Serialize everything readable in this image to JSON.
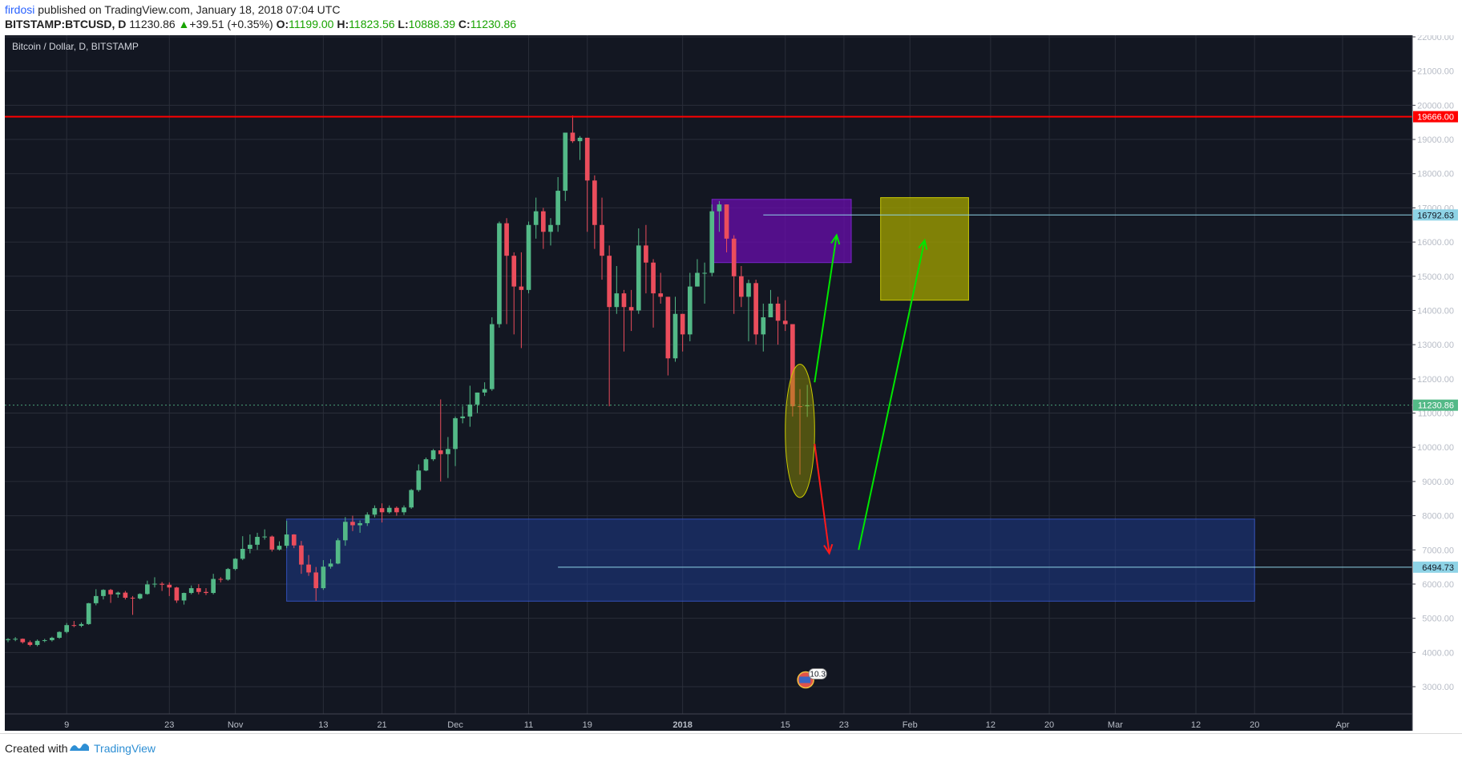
{
  "header": {
    "author": "firdosi",
    "published_text": "published on TradingView.com, January 18, 2018 07:04 UTC",
    "symbol": "BITSTAMP:BTCUSD, D",
    "last": "11230.86",
    "change": "+39.51 (+0.35%)",
    "o_label": "O:",
    "o_value": "11199.00",
    "h_label": "H:",
    "h_value": "11823.56",
    "l_label": "L:",
    "l_value": "10888.39",
    "c_label": "C:",
    "c_value": "11230.86"
  },
  "footer": {
    "created_with": "Created with",
    "brand": "TradingView"
  },
  "colors": {
    "background": "#131722",
    "grid": "#2a2e39",
    "up": "#53b987",
    "down": "#eb4d5c",
    "resistance": "#ff0000",
    "green_arrow": "#00e600",
    "red_arrow": "#ff1a1a",
    "purple_zone": "#6a0dad",
    "yellow_zone": "#9c9c00",
    "blue_zone": "#1e3a8a"
  },
  "chart_data": {
    "type": "candlestick",
    "title": "Bitcoin / Dollar, D, BITSTAMP",
    "ylim": [
      2800,
      22200
    ],
    "y_ticks": [
      3000,
      4000,
      5000,
      6000,
      7000,
      8000,
      9000,
      10000,
      11000,
      12000,
      13000,
      14000,
      15000,
      16000,
      17000,
      18000,
      19000,
      20000,
      21000,
      22000
    ],
    "y_tick_labels": [
      "3000.00",
      "4000.00",
      "5000.00",
      "6000.00",
      "7000.00",
      "8000.00",
      "9000.00",
      "10000.00",
      "11000.00",
      "12000.00",
      "13000.00",
      "14000.00",
      "15000.00",
      "16000.00",
      "17000.00",
      "18000.00",
      "19000.00",
      "20000.00",
      "21000.00",
      "22000.00"
    ],
    "x_range": [
      "2017-10-01",
      "2018-04-05"
    ],
    "x_ticks": [
      {
        "date": "2017-10-09",
        "label": "9"
      },
      {
        "date": "2017-10-23",
        "label": "23"
      },
      {
        "date": "2017-11-01",
        "label": "Nov"
      },
      {
        "date": "2017-11-13",
        "label": "13"
      },
      {
        "date": "2017-11-21",
        "label": "21"
      },
      {
        "date": "2017-12-01",
        "label": "Dec"
      },
      {
        "date": "2017-12-11",
        "label": "11"
      },
      {
        "date": "2017-12-19",
        "label": "19"
      },
      {
        "date": "2018-01-01",
        "label": "2018"
      },
      {
        "date": "2018-01-15",
        "label": "15"
      },
      {
        "date": "2018-01-23",
        "label": "23"
      },
      {
        "date": "2018-02-01",
        "label": "Feb"
      },
      {
        "date": "2018-02-12",
        "label": "12"
      },
      {
        "date": "2018-02-20",
        "label": "20"
      },
      {
        "date": "2018-03-01",
        "label": "Mar"
      },
      {
        "date": "2018-03-12",
        "label": "12"
      },
      {
        "date": "2018-03-20",
        "label": "20"
      },
      {
        "date": "2018-04-01",
        "label": "Apr"
      }
    ],
    "candles": [
      {
        "d": "2017-10-01",
        "o": 4360,
        "h": 4420,
        "l": 4300,
        "c": 4390
      },
      {
        "d": "2017-10-02",
        "o": 4390,
        "h": 4450,
        "l": 4330,
        "c": 4400
      },
      {
        "d": "2017-10-03",
        "o": 4400,
        "h": 4410,
        "l": 4260,
        "c": 4300
      },
      {
        "d": "2017-10-04",
        "o": 4300,
        "h": 4350,
        "l": 4180,
        "c": 4220
      },
      {
        "d": "2017-10-05",
        "o": 4220,
        "h": 4380,
        "l": 4180,
        "c": 4340
      },
      {
        "d": "2017-10-06",
        "o": 4340,
        "h": 4400,
        "l": 4300,
        "c": 4360
      },
      {
        "d": "2017-10-07",
        "o": 4360,
        "h": 4460,
        "l": 4320,
        "c": 4430
      },
      {
        "d": "2017-10-08",
        "o": 4430,
        "h": 4620,
        "l": 4400,
        "c": 4600
      },
      {
        "d": "2017-10-09",
        "o": 4600,
        "h": 4860,
        "l": 4560,
        "c": 4800
      },
      {
        "d": "2017-10-10",
        "o": 4800,
        "h": 4920,
        "l": 4740,
        "c": 4780
      },
      {
        "d": "2017-10-11",
        "o": 4780,
        "h": 4880,
        "l": 4740,
        "c": 4830
      },
      {
        "d": "2017-10-12",
        "o": 4830,
        "h": 5450,
        "l": 4810,
        "c": 5440
      },
      {
        "d": "2017-10-13",
        "o": 5440,
        "h": 5850,
        "l": 5380,
        "c": 5650
      },
      {
        "d": "2017-10-14",
        "o": 5650,
        "h": 5850,
        "l": 5550,
        "c": 5830
      },
      {
        "d": "2017-10-15",
        "o": 5830,
        "h": 5860,
        "l": 5450,
        "c": 5700
      },
      {
        "d": "2017-10-16",
        "o": 5700,
        "h": 5780,
        "l": 5600,
        "c": 5750
      },
      {
        "d": "2017-10-17",
        "o": 5750,
        "h": 5800,
        "l": 5550,
        "c": 5600
      },
      {
        "d": "2017-10-18",
        "o": 5600,
        "h": 5650,
        "l": 5100,
        "c": 5580
      },
      {
        "d": "2017-10-19",
        "o": 5580,
        "h": 5730,
        "l": 5550,
        "c": 5710
      },
      {
        "d": "2017-10-20",
        "o": 5710,
        "h": 6100,
        "l": 5690,
        "c": 5990
      },
      {
        "d": "2017-10-21",
        "o": 5990,
        "h": 6200,
        "l": 5900,
        "c": 6010
      },
      {
        "d": "2017-10-22",
        "o": 6010,
        "h": 6060,
        "l": 5800,
        "c": 5980
      },
      {
        "d": "2017-10-23",
        "o": 5980,
        "h": 6050,
        "l": 5650,
        "c": 5900
      },
      {
        "d": "2017-10-24",
        "o": 5900,
        "h": 5920,
        "l": 5450,
        "c": 5520
      },
      {
        "d": "2017-10-25",
        "o": 5520,
        "h": 5750,
        "l": 5400,
        "c": 5740
      },
      {
        "d": "2017-10-26",
        "o": 5740,
        "h": 5960,
        "l": 5700,
        "c": 5880
      },
      {
        "d": "2017-10-27",
        "o": 5880,
        "h": 6000,
        "l": 5700,
        "c": 5770
      },
      {
        "d": "2017-10-28",
        "o": 5770,
        "h": 5880,
        "l": 5680,
        "c": 5740
      },
      {
        "d": "2017-10-29",
        "o": 5740,
        "h": 6300,
        "l": 5700,
        "c": 6150
      },
      {
        "d": "2017-10-30",
        "o": 6150,
        "h": 6200,
        "l": 6050,
        "c": 6130
      },
      {
        "d": "2017-10-31",
        "o": 6130,
        "h": 6470,
        "l": 6100,
        "c": 6440
      },
      {
        "d": "2017-11-01",
        "o": 6440,
        "h": 6760,
        "l": 6400,
        "c": 6740
      },
      {
        "d": "2017-11-02",
        "o": 6740,
        "h": 7400,
        "l": 6700,
        "c": 7030
      },
      {
        "d": "2017-11-03",
        "o": 7030,
        "h": 7450,
        "l": 6900,
        "c": 7150
      },
      {
        "d": "2017-11-04",
        "o": 7150,
        "h": 7500,
        "l": 7000,
        "c": 7380
      },
      {
        "d": "2017-11-05",
        "o": 7380,
        "h": 7600,
        "l": 7300,
        "c": 7390
      },
      {
        "d": "2017-11-06",
        "o": 7390,
        "h": 7420,
        "l": 6950,
        "c": 7010
      },
      {
        "d": "2017-11-07",
        "o": 7010,
        "h": 7250,
        "l": 6980,
        "c": 7120
      },
      {
        "d": "2017-11-08",
        "o": 7120,
        "h": 7850,
        "l": 7050,
        "c": 7450
      },
      {
        "d": "2017-11-09",
        "o": 7450,
        "h": 7460,
        "l": 7050,
        "c": 7130
      },
      {
        "d": "2017-11-10",
        "o": 7130,
        "h": 7260,
        "l": 6300,
        "c": 6570
      },
      {
        "d": "2017-11-11",
        "o": 6570,
        "h": 6850,
        "l": 6240,
        "c": 6340
      },
      {
        "d": "2017-11-12",
        "o": 6340,
        "h": 6500,
        "l": 5510,
        "c": 5880
      },
      {
        "d": "2017-11-13",
        "o": 5880,
        "h": 6700,
        "l": 5830,
        "c": 6510
      },
      {
        "d": "2017-11-14",
        "o": 6510,
        "h": 6730,
        "l": 6450,
        "c": 6600
      },
      {
        "d": "2017-11-15",
        "o": 6600,
        "h": 7340,
        "l": 6580,
        "c": 7280
      },
      {
        "d": "2017-11-16",
        "o": 7280,
        "h": 7960,
        "l": 7120,
        "c": 7820
      },
      {
        "d": "2017-11-17",
        "o": 7820,
        "h": 8000,
        "l": 7550,
        "c": 7720
      },
      {
        "d": "2017-11-18",
        "o": 7720,
        "h": 7860,
        "l": 7500,
        "c": 7780
      },
      {
        "d": "2017-11-19",
        "o": 7780,
        "h": 8100,
        "l": 7700,
        "c": 8030
      },
      {
        "d": "2017-11-20",
        "o": 8030,
        "h": 8300,
        "l": 7950,
        "c": 8220
      },
      {
        "d": "2017-11-21",
        "o": 8220,
        "h": 8360,
        "l": 7800,
        "c": 8100
      },
      {
        "d": "2017-11-22",
        "o": 8100,
        "h": 8300,
        "l": 8060,
        "c": 8230
      },
      {
        "d": "2017-11-23",
        "o": 8230,
        "h": 8270,
        "l": 8000,
        "c": 8100
      },
      {
        "d": "2017-11-24",
        "o": 8100,
        "h": 8300,
        "l": 8020,
        "c": 8240
      },
      {
        "d": "2017-11-25",
        "o": 8240,
        "h": 8780,
        "l": 8200,
        "c": 8750
      },
      {
        "d": "2017-11-26",
        "o": 8750,
        "h": 9500,
        "l": 8700,
        "c": 9320
      },
      {
        "d": "2017-11-27",
        "o": 9320,
        "h": 9700,
        "l": 9300,
        "c": 9650
      },
      {
        "d": "2017-11-28",
        "o": 9650,
        "h": 9950,
        "l": 9600,
        "c": 9910
      },
      {
        "d": "2017-11-29",
        "o": 9910,
        "h": 11400,
        "l": 9000,
        "c": 9800
      },
      {
        "d": "2017-11-30",
        "o": 9800,
        "h": 10300,
        "l": 9100,
        "c": 9950
      },
      {
        "d": "2017-12-01",
        "o": 9950,
        "h": 10900,
        "l": 9450,
        "c": 10850
      },
      {
        "d": "2017-12-02",
        "o": 10850,
        "h": 11200,
        "l": 10700,
        "c": 10900
      },
      {
        "d": "2017-12-03",
        "o": 10900,
        "h": 11800,
        "l": 10600,
        "c": 11250
      },
      {
        "d": "2017-12-04",
        "o": 11250,
        "h": 11600,
        "l": 11000,
        "c": 11600
      },
      {
        "d": "2017-12-05",
        "o": 11600,
        "h": 11900,
        "l": 11500,
        "c": 11700
      },
      {
        "d": "2017-12-06",
        "o": 11700,
        "h": 13800,
        "l": 11650,
        "c": 13600
      },
      {
        "d": "2017-12-07",
        "o": 13600,
        "h": 16600,
        "l": 13500,
        "c": 16550
      },
      {
        "d": "2017-12-08",
        "o": 16550,
        "h": 16700,
        "l": 13600,
        "c": 15600
      },
      {
        "d": "2017-12-09",
        "o": 15600,
        "h": 15700,
        "l": 13300,
        "c": 14700
      },
      {
        "d": "2017-12-10",
        "o": 14700,
        "h": 15700,
        "l": 12900,
        "c": 14600
      },
      {
        "d": "2017-12-11",
        "o": 14600,
        "h": 16600,
        "l": 14500,
        "c": 16500
      },
      {
        "d": "2017-12-12",
        "o": 16500,
        "h": 17300,
        "l": 16100,
        "c": 16900
      },
      {
        "d": "2017-12-13",
        "o": 16900,
        "h": 17000,
        "l": 15800,
        "c": 16300
      },
      {
        "d": "2017-12-14",
        "o": 16300,
        "h": 16700,
        "l": 15900,
        "c": 16500
      },
      {
        "d": "2017-12-15",
        "o": 16500,
        "h": 17900,
        "l": 16300,
        "c": 17500
      },
      {
        "d": "2017-12-16",
        "o": 17500,
        "h": 19100,
        "l": 17200,
        "c": 19200
      },
      {
        "d": "2017-12-17",
        "o": 19200,
        "h": 19700,
        "l": 18900,
        "c": 18950
      },
      {
        "d": "2017-12-18",
        "o": 18950,
        "h": 19100,
        "l": 18400,
        "c": 19050
      },
      {
        "d": "2017-12-19",
        "o": 19050,
        "h": 19050,
        "l": 16300,
        "c": 17800
      },
      {
        "d": "2017-12-20",
        "o": 17800,
        "h": 17950,
        "l": 15800,
        "c": 16500
      },
      {
        "d": "2017-12-21",
        "o": 16500,
        "h": 17300,
        "l": 14900,
        "c": 15600
      },
      {
        "d": "2017-12-22",
        "o": 15600,
        "h": 15900,
        "l": 11200,
        "c": 14100
      },
      {
        "d": "2017-12-23",
        "o": 14100,
        "h": 15300,
        "l": 13900,
        "c": 14500
      },
      {
        "d": "2017-12-24",
        "o": 14500,
        "h": 14600,
        "l": 12800,
        "c": 14100
      },
      {
        "d": "2017-12-25",
        "o": 14100,
        "h": 14600,
        "l": 13400,
        "c": 14000
      },
      {
        "d": "2017-12-26",
        "o": 14000,
        "h": 16400,
        "l": 13900,
        "c": 15900
      },
      {
        "d": "2017-12-27",
        "o": 15900,
        "h": 16500,
        "l": 14500,
        "c": 15400
      },
      {
        "d": "2017-12-28",
        "o": 15400,
        "h": 15500,
        "l": 13500,
        "c": 14500
      },
      {
        "d": "2017-12-29",
        "o": 14500,
        "h": 15100,
        "l": 14200,
        "c": 14400
      },
      {
        "d": "2017-12-30",
        "o": 14400,
        "h": 14400,
        "l": 12100,
        "c": 12600
      },
      {
        "d": "2017-12-31",
        "o": 12600,
        "h": 14400,
        "l": 12500,
        "c": 13900
      },
      {
        "d": "2018-01-01",
        "o": 13900,
        "h": 13900,
        "l": 12800,
        "c": 13300
      },
      {
        "d": "2018-01-02",
        "o": 13300,
        "h": 15100,
        "l": 13100,
        "c": 14700
      },
      {
        "d": "2018-01-03",
        "o": 14700,
        "h": 15500,
        "l": 14700,
        "c": 15100
      },
      {
        "d": "2018-01-04",
        "o": 15100,
        "h": 15400,
        "l": 14200,
        "c": 15100
      },
      {
        "d": "2018-01-05",
        "o": 15100,
        "h": 17100,
        "l": 15000,
        "c": 16900
      },
      {
        "d": "2018-01-06",
        "o": 16900,
        "h": 17200,
        "l": 16300,
        "c": 17100
      },
      {
        "d": "2018-01-07",
        "o": 17100,
        "h": 17100,
        "l": 15700,
        "c": 16100
      },
      {
        "d": "2018-01-08",
        "o": 16100,
        "h": 16200,
        "l": 13900,
        "c": 15000
      },
      {
        "d": "2018-01-09",
        "o": 15000,
        "h": 15300,
        "l": 14100,
        "c": 14400
      },
      {
        "d": "2018-01-10",
        "o": 14400,
        "h": 14900,
        "l": 13100,
        "c": 14800
      },
      {
        "d": "2018-01-11",
        "o": 14800,
        "h": 14900,
        "l": 13000,
        "c": 13300
      },
      {
        "d": "2018-01-12",
        "o": 13300,
        "h": 14200,
        "l": 12800,
        "c": 13800
      },
      {
        "d": "2018-01-13",
        "o": 13800,
        "h": 14600,
        "l": 13800,
        "c": 14200
      },
      {
        "d": "2018-01-14",
        "o": 14200,
        "h": 14400,
        "l": 13000,
        "c": 13700
      },
      {
        "d": "2018-01-15",
        "o": 13700,
        "h": 14300,
        "l": 13400,
        "c": 13600
      },
      {
        "d": "2018-01-16",
        "o": 13600,
        "h": 13600,
        "l": 10900,
        "c": 11200
      },
      {
        "d": "2018-01-17",
        "o": 11200,
        "h": 11700,
        "l": 9200,
        "c": 11191
      },
      {
        "d": "2018-01-18",
        "o": 11199,
        "h": 11824,
        "l": 10888,
        "c": 11231
      }
    ],
    "horizontal_lines": [
      {
        "value": 19666.0,
        "label": "19666.00",
        "color": "#ff0000"
      },
      {
        "value": 16792.63,
        "label": "16792.63",
        "color": "#8ed3e6"
      },
      {
        "value": 6494.73,
        "label": "6494.73",
        "color": "#8ed3e6"
      },
      {
        "value": 11230.86,
        "label": "11230.86",
        "color": "#53b987"
      }
    ],
    "zones": [
      {
        "name": "purple-zone",
        "x0": "2018-01-05",
        "x1": "2018-01-24",
        "y0": 15400,
        "y1": 17250
      },
      {
        "name": "yellow-zone",
        "x0": "2018-01-28",
        "x1": "2018-02-09",
        "y0": 14300,
        "y1": 17300
      },
      {
        "name": "blue-zone",
        "x0": "2017-11-08",
        "x1": "2018-03-20",
        "y0": 5500,
        "y1": 7900
      }
    ],
    "arrows": [
      {
        "name": "green-arrow-short",
        "x0": "2018-01-19",
        "y0": 11900,
        "x1": "2018-01-22",
        "y1": 16200,
        "color": "#00e600"
      },
      {
        "name": "green-arrow-long",
        "x0": "2018-01-25",
        "y0": 7000,
        "x1": "2018-02-03",
        "y1": 16050,
        "color": "#00e600"
      },
      {
        "name": "red-arrow",
        "x0": "2018-01-19",
        "y0": 10100,
        "x1": "2018-01-21",
        "y1": 6900,
        "color": "#ff1a1a"
      }
    ],
    "ellipse": {
      "x": "2018-01-17",
      "y": 10480,
      "rx_days": 2,
      "ry": 1950
    },
    "event_badge": {
      "x": "2018-01-18",
      "y": 3200,
      "label": "10.3"
    }
  }
}
